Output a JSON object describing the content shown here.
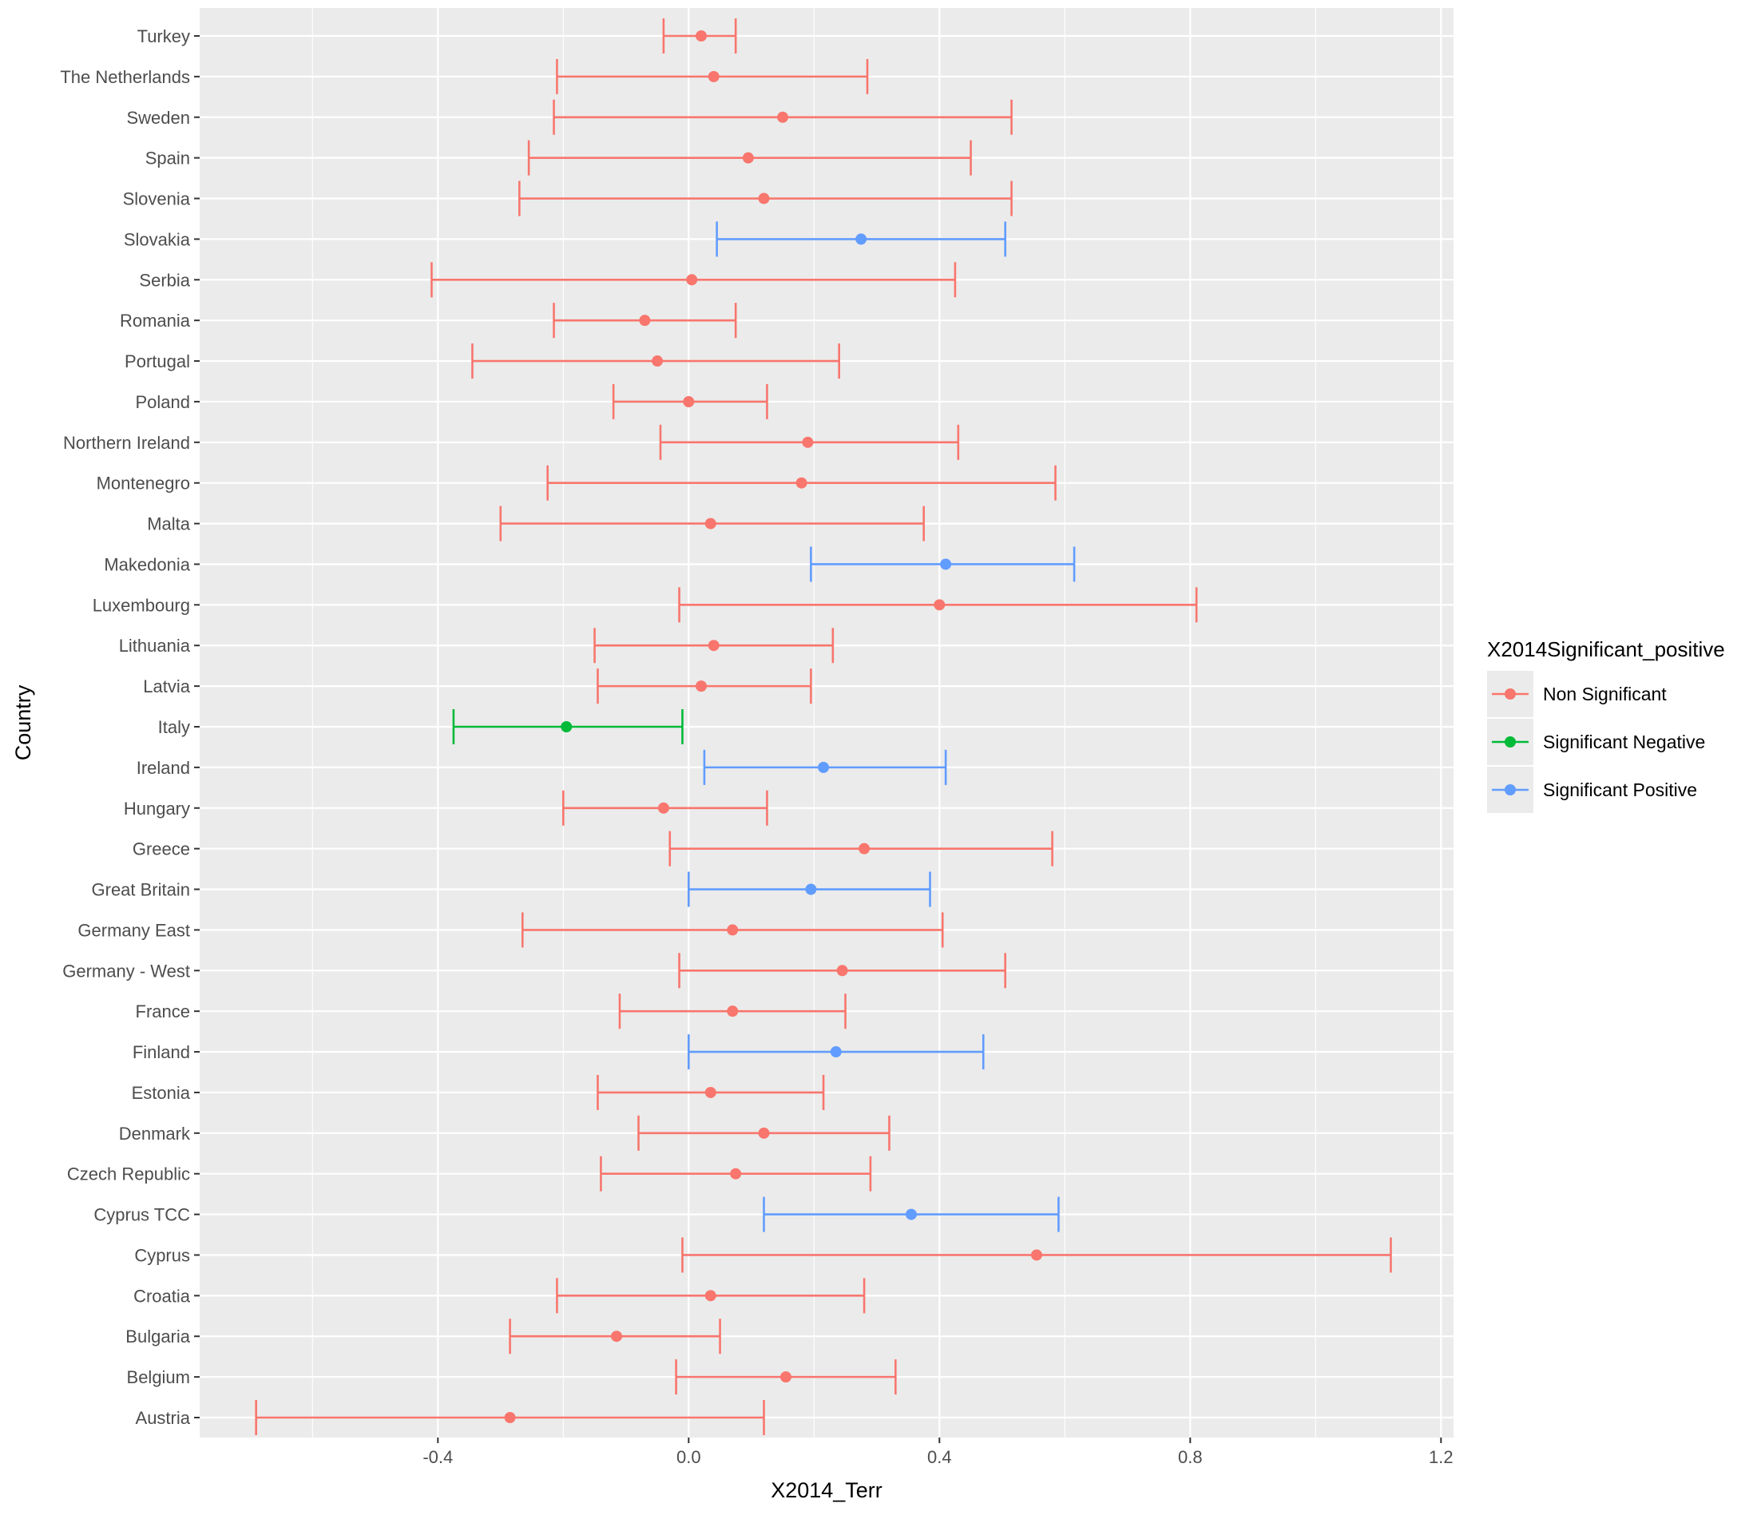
{
  "chart_data": {
    "type": "errorbar",
    "title": "",
    "xlabel": "X2014_Terr",
    "ylabel": "Country",
    "xlim": [
      -0.78,
      1.22
    ],
    "xticks": [
      -0.4,
      0.0,
      0.4,
      0.8,
      1.2
    ],
    "xtick_labels": [
      "-0.4",
      "0.0",
      "0.4",
      "0.8",
      "1.2"
    ],
    "grid": true,
    "legend": {
      "title": "X2014Significant_positive",
      "position": "right",
      "entries": [
        {
          "key": "ns",
          "label": "Non Significant",
          "color": "#F8766D"
        },
        {
          "key": "neg",
          "label": "Significant Negative",
          "color": "#00BA38"
        },
        {
          "key": "pos",
          "label": "Significant Positive",
          "color": "#619CFF"
        }
      ]
    },
    "colors": {
      "panel": "#EBEBEB",
      "grid": "#FFFFFF",
      "tick": "#333333"
    },
    "points": [
      {
        "country": "Turkey",
        "est": 0.02,
        "low": -0.04,
        "high": 0.075,
        "group": "ns"
      },
      {
        "country": "The Netherlands",
        "est": 0.04,
        "low": -0.21,
        "high": 0.285,
        "group": "ns"
      },
      {
        "country": "Sweden",
        "est": 0.15,
        "low": -0.215,
        "high": 0.515,
        "group": "ns"
      },
      {
        "country": "Spain",
        "est": 0.095,
        "low": -0.255,
        "high": 0.45,
        "group": "ns"
      },
      {
        "country": "Slovenia",
        "est": 0.12,
        "low": -0.27,
        "high": 0.515,
        "group": "ns"
      },
      {
        "country": "Slovakia",
        "est": 0.275,
        "low": 0.045,
        "high": 0.505,
        "group": "pos"
      },
      {
        "country": "Serbia",
        "est": 0.005,
        "low": -0.41,
        "high": 0.425,
        "group": "ns"
      },
      {
        "country": "Romania",
        "est": -0.07,
        "low": -0.215,
        "high": 0.075,
        "group": "ns"
      },
      {
        "country": "Portugal",
        "est": -0.05,
        "low": -0.345,
        "high": 0.24,
        "group": "ns"
      },
      {
        "country": "Poland",
        "est": 0.0,
        "low": -0.12,
        "high": 0.125,
        "group": "ns"
      },
      {
        "country": "Northern Ireland",
        "est": 0.19,
        "low": -0.045,
        "high": 0.43,
        "group": "ns"
      },
      {
        "country": "Montenegro",
        "est": 0.18,
        "low": -0.225,
        "high": 0.585,
        "group": "ns"
      },
      {
        "country": "Malta",
        "est": 0.035,
        "low": -0.3,
        "high": 0.375,
        "group": "ns"
      },
      {
        "country": "Makedonia",
        "est": 0.41,
        "low": 0.195,
        "high": 0.615,
        "group": "pos"
      },
      {
        "country": "Luxembourg",
        "est": 0.4,
        "low": -0.015,
        "high": 0.81,
        "group": "ns"
      },
      {
        "country": "Lithuania",
        "est": 0.04,
        "low": -0.15,
        "high": 0.23,
        "group": "ns"
      },
      {
        "country": "Latvia",
        "est": 0.02,
        "low": -0.145,
        "high": 0.195,
        "group": "ns"
      },
      {
        "country": "Italy",
        "est": -0.195,
        "low": -0.375,
        "high": -0.01,
        "group": "neg"
      },
      {
        "country": "Ireland",
        "est": 0.215,
        "low": 0.025,
        "high": 0.41,
        "group": "pos"
      },
      {
        "country": "Hungary",
        "est": -0.04,
        "low": -0.2,
        "high": 0.125,
        "group": "ns"
      },
      {
        "country": "Greece",
        "est": 0.28,
        "low": -0.03,
        "high": 0.58,
        "group": "ns"
      },
      {
        "country": "Great Britain",
        "est": 0.195,
        "low": 0.0,
        "high": 0.385,
        "group": "pos"
      },
      {
        "country": "Germany East",
        "est": 0.07,
        "low": -0.265,
        "high": 0.405,
        "group": "ns"
      },
      {
        "country": "Germany - West",
        "est": 0.245,
        "low": -0.015,
        "high": 0.505,
        "group": "ns"
      },
      {
        "country": "France",
        "est": 0.07,
        "low": -0.11,
        "high": 0.25,
        "group": "ns"
      },
      {
        "country": "Finland",
        "est": 0.235,
        "low": 0.0,
        "high": 0.47,
        "group": "pos"
      },
      {
        "country": "Estonia",
        "est": 0.035,
        "low": -0.145,
        "high": 0.215,
        "group": "ns"
      },
      {
        "country": "Denmark",
        "est": 0.12,
        "low": -0.08,
        "high": 0.32,
        "group": "ns"
      },
      {
        "country": "Czech Republic",
        "est": 0.075,
        "low": -0.14,
        "high": 0.29,
        "group": "ns"
      },
      {
        "country": "Cyprus TCC",
        "est": 0.355,
        "low": 0.12,
        "high": 0.59,
        "group": "pos"
      },
      {
        "country": "Cyprus",
        "est": 0.555,
        "low": -0.01,
        "high": 1.12,
        "group": "ns"
      },
      {
        "country": "Croatia",
        "est": 0.035,
        "low": -0.21,
        "high": 0.28,
        "group": "ns"
      },
      {
        "country": "Bulgaria",
        "est": -0.115,
        "low": -0.285,
        "high": 0.05,
        "group": "ns"
      },
      {
        "country": "Belgium",
        "est": 0.155,
        "low": -0.02,
        "high": 0.33,
        "group": "ns"
      },
      {
        "country": "Austria",
        "est": -0.285,
        "low": -0.69,
        "high": 0.12,
        "group": "ns"
      }
    ]
  }
}
